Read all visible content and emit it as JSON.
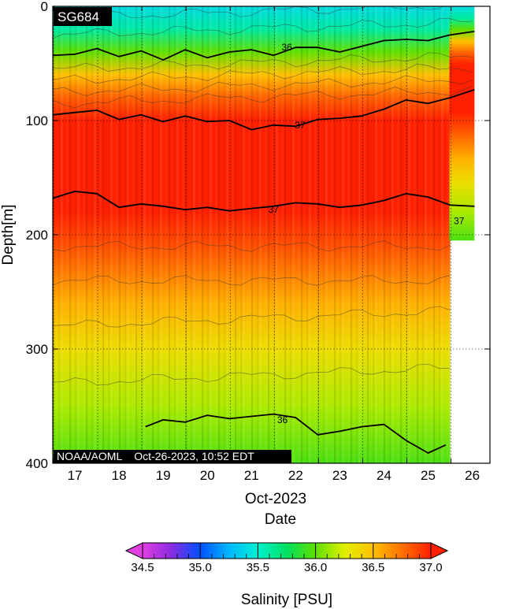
{
  "chart_data": {
    "type": "heatmap",
    "title": "SG684",
    "footer": "NOAA/AOML    Oct-26-2023, 10:52 EDT",
    "xlabel_month": "Oct-2023",
    "xlabel": "Date",
    "ylabel": "Depth[m]",
    "x_ticks": [
      17,
      18,
      19,
      20,
      21,
      22,
      23,
      24,
      25,
      26
    ],
    "xlim": [
      16.5,
      26.4
    ],
    "y_ticks": [
      0,
      100,
      200,
      300,
      400
    ],
    "ylim": [
      0,
      400
    ],
    "y_inverted": true,
    "grid": true,
    "colorbar": {
      "label": "Salinity [PSU]",
      "range": [
        34.5,
        37.0
      ],
      "ticks": [
        "34.5",
        "35.0",
        "35.5",
        "36.0",
        "36.5",
        "37.0"
      ],
      "colors": [
        "#e040e0",
        "#8a2be2",
        "#0050ff",
        "#00b8ff",
        "#00f0d0",
        "#00e060",
        "#60e000",
        "#e0f000",
        "#ffc000",
        "#ff7000",
        "#ff2000"
      ]
    },
    "data_extent": [
      {
        "time_end": 25.5,
        "depth_max": 400
      },
      {
        "time_end": 26.05,
        "depth_max": 205
      }
    ],
    "salinity_profile": [
      {
        "depth": 0,
        "salinity": 35.4
      },
      {
        "depth": 20,
        "salinity": 35.6
      },
      {
        "depth": 40,
        "salinity": 36.0
      },
      {
        "depth": 60,
        "salinity": 36.5
      },
      {
        "depth": 80,
        "salinity": 36.8
      },
      {
        "depth": 100,
        "salinity": 37.0
      },
      {
        "depth": 180,
        "salinity": 37.0
      },
      {
        "depth": 210,
        "salinity": 36.85
      },
      {
        "depth": 260,
        "salinity": 36.55
      },
      {
        "depth": 300,
        "salinity": 36.35
      },
      {
        "depth": 350,
        "salinity": 36.15
      },
      {
        "depth": 400,
        "salinity": 35.95
      }
    ],
    "contours": [
      {
        "level": "36",
        "label_pos": [
          21.8,
          36
        ],
        "x": [
          16.5,
          17,
          17.5,
          18,
          18.5,
          19,
          19.5,
          20,
          20.5,
          21,
          21.5,
          22,
          22.5,
          23,
          23.5,
          24,
          24.5,
          25,
          25.5,
          26.05
        ],
        "y": [
          43,
          42,
          37,
          44,
          39,
          47,
          38,
          45,
          40,
          38,
          43,
          36,
          36,
          40,
          35,
          30,
          29,
          30,
          25,
          22
        ]
      },
      {
        "level": "37",
        "label_pos": [
          22.1,
          104
        ],
        "x": [
          16.5,
          17,
          17.5,
          18,
          18.5,
          19,
          19.5,
          20,
          20.5,
          21,
          21.5,
          22,
          22.5,
          23,
          23.5,
          24,
          24.5,
          25,
          25.5,
          26.05
        ],
        "y": [
          95,
          93,
          91,
          99,
          95,
          101,
          96,
          101,
          100,
          108,
          104,
          105,
          99,
          98,
          96,
          90,
          82,
          85,
          80,
          73
        ]
      },
      {
        "level": "37",
        "label_pos": [
          21.5,
          178
        ],
        "x": [
          16.5,
          17,
          17.5,
          18,
          18.5,
          19,
          19.5,
          20,
          20.5,
          21,
          21.5,
          22,
          22.5,
          23,
          23.5,
          24,
          24.5,
          25,
          25.5,
          26.05
        ],
        "y": [
          168,
          162,
          164,
          176,
          173,
          175,
          178,
          176,
          179,
          177,
          175,
          172,
          173,
          176,
          174,
          170,
          164,
          167,
          174,
          175
        ]
      },
      {
        "level": "37",
        "label_pos": [
          25.7,
          188
        ],
        "x": [],
        "y": []
      },
      {
        "level": "36",
        "label_pos": [
          21.7,
          362
        ],
        "x": [
          18.6,
          19,
          19.5,
          20,
          20.5,
          21,
          21.5,
          22,
          22.5,
          23,
          23.5,
          24,
          24.5,
          25,
          25.4
        ],
        "y": [
          368,
          362,
          364,
          358,
          361,
          359,
          357,
          360,
          375,
          372,
          368,
          366,
          380,
          391,
          384
        ]
      }
    ]
  }
}
